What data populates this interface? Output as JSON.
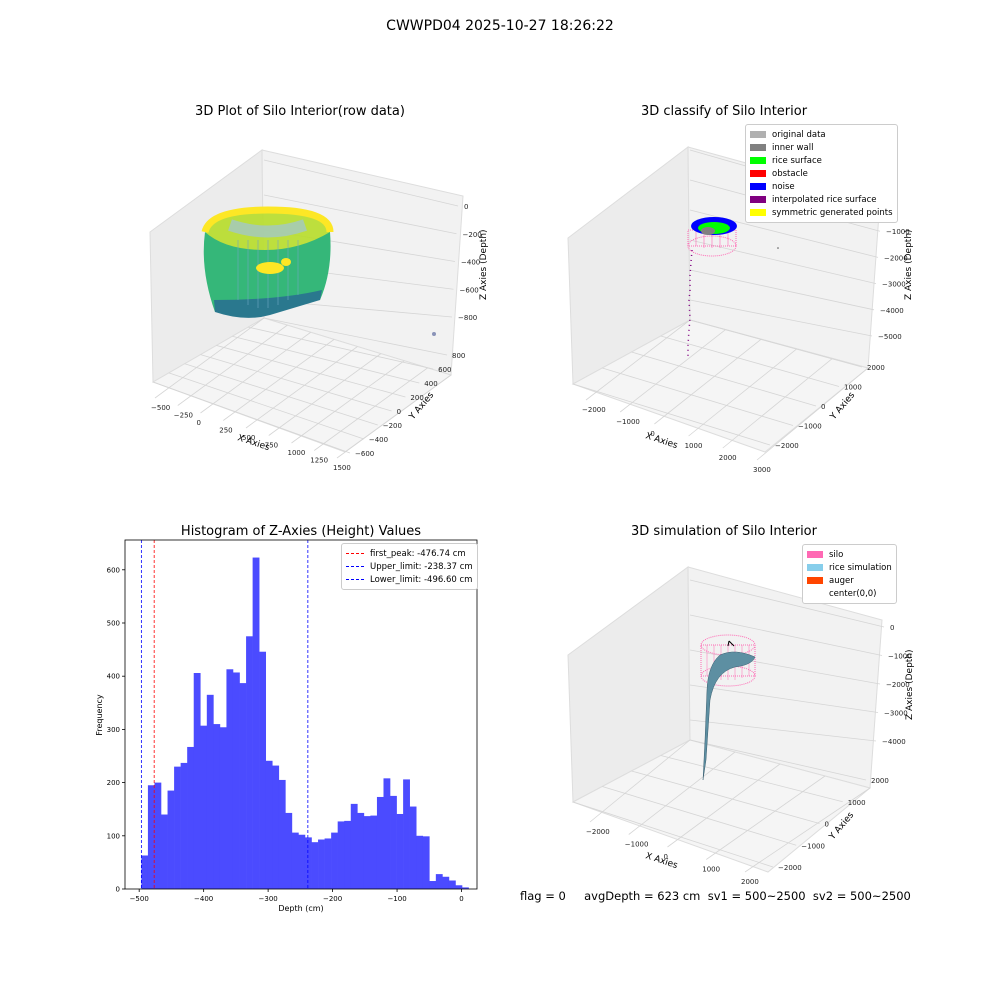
{
  "suptitle": "CWWPD04 2025-10-27 18:26:22",
  "footer": "flag = 0     avgDepth = 623 cm  sv1 = 500~2500  sv2 = 500~2500",
  "chart_data": [
    {
      "type": "scatter",
      "title": "3D Plot of Silo Interior(row data)",
      "xlabel": "X Axies",
      "ylabel": "Y Axies",
      "zlabel": "Z Axies (Depth)",
      "x_ticks": [
        "−500",
        "−250",
        "0",
        "250",
        "500",
        "750",
        "1000",
        "1250",
        "1500"
      ],
      "y_ticks": [
        "−600",
        "−400",
        "−200",
        "0",
        "200",
        "400",
        "600",
        "800"
      ],
      "z_ticks": [
        "0",
        "−200",
        "−400",
        "−600",
        "−800"
      ],
      "colormap": "viridis"
    },
    {
      "type": "scatter",
      "title": "3D classify of Silo Interior",
      "xlabel": "X Axies",
      "ylabel": "Y Axies",
      "zlabel": "Z Axies (Depth)",
      "x_ticks": [
        "−2000",
        "−1000",
        "0",
        "1000",
        "2000",
        "3000"
      ],
      "y_ticks": [
        "−2000",
        "−1000",
        "0",
        "1000",
        "2000"
      ],
      "z_ticks": [
        "0",
        "−1000",
        "−2000",
        "−3000",
        "−4000",
        "−5000"
      ],
      "legend": [
        {
          "label": "original data",
          "color": "#b0b0b0"
        },
        {
          "label": "inner wall",
          "color": "#808080"
        },
        {
          "label": "rice surface",
          "color": "#00ff00"
        },
        {
          "label": "obstacle",
          "color": "#ff0000"
        },
        {
          "label": "noise",
          "color": "#0000ff"
        },
        {
          "label": "interpolated rice surface",
          "color": "#800080"
        },
        {
          "label": "symmetric generated points",
          "color": "#ffff00"
        }
      ]
    },
    {
      "type": "bar",
      "title": "Histogram of Z-Axies (Height) Values",
      "xlabel": "Depth (cm)",
      "ylabel": "Frequency",
      "xlim": [
        -522,
        24
      ],
      "ylim": [
        0,
        656
      ],
      "x_ticks": [
        -500,
        -400,
        -300,
        -200,
        -100,
        0
      ],
      "y_ticks": [
        0,
        100,
        200,
        300,
        400,
        500,
        600
      ],
      "bar_color": "#4b4bff",
      "bin_start": -496.6,
      "bin_width": 10.15,
      "values": [
        63,
        195,
        200,
        140,
        185,
        230,
        237,
        267,
        406,
        307,
        365,
        310,
        304,
        413,
        407,
        387,
        475,
        623,
        446,
        241,
        232,
        205,
        143,
        106,
        102,
        97,
        88,
        93,
        95,
        106,
        127,
        128,
        160,
        143,
        137,
        138,
        173,
        208,
        175,
        141,
        206,
        155,
        100,
        99,
        15,
        28,
        23,
        16,
        7,
        3
      ],
      "vlines": [
        {
          "label": "first_peak: -476.74 cm",
          "x": -476.74,
          "color": "#ff0000"
        },
        {
          "label": "Upper_limit: -238.37 cm",
          "x": -238.37,
          "color": "#0000ff"
        },
        {
          "label": "Lower_limit: -496.60 cm",
          "x": -496.6,
          "color": "#0000ff"
        }
      ]
    },
    {
      "type": "area",
      "title": "3D simulation of Silo Interior",
      "xlabel": "X Axies",
      "ylabel": "Y Axies",
      "zlabel": "Z Axies (Depth)",
      "x_ticks": [
        "−2000",
        "−1000",
        "0",
        "1000",
        "2000"
      ],
      "y_ticks": [
        "−2000",
        "−1000",
        "0",
        "1000",
        "2000"
      ],
      "z_ticks": [
        "0",
        "−1000",
        "−2000",
        "−3000",
        "−4000"
      ],
      "legend": [
        {
          "label": "silo",
          "color": "#ff69b4"
        },
        {
          "label": "rice simulation",
          "color": "#87ceeb"
        },
        {
          "label": "auger",
          "color": "#ff4500"
        },
        {
          "label": "center(0,0)",
          "color": "#ffffff"
        }
      ]
    }
  ]
}
